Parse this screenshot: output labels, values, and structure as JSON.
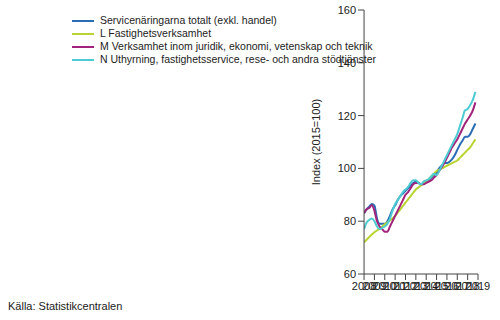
{
  "chart_data": {
    "type": "line",
    "y_label": "Index (2015=100)",
    "source": "Källa: Statistikcentralen",
    "x": [
      2008,
      2008.25,
      2008.5,
      2008.75,
      2009,
      2009.25,
      2009.5,
      2009.75,
      2010,
      2010.25,
      2010.5,
      2010.75,
      2011,
      2011.25,
      2011.5,
      2011.75,
      2012,
      2012.25,
      2012.5,
      2012.75,
      2013,
      2013.25,
      2013.5,
      2013.75,
      2014,
      2014.25,
      2014.5,
      2014.75,
      2015,
      2015.25,
      2015.5,
      2015.75,
      2016,
      2016.25,
      2016.5,
      2016.75,
      2017,
      2017.25,
      2017.5,
      2017.75,
      2018,
      2018.25,
      2018.5,
      2018.75
    ],
    "xlim": [
      2008,
      2019
    ],
    "xticks": [
      2008,
      2009,
      2010,
      2011,
      2012,
      2013,
      2014,
      2015,
      2016,
      2017,
      2018,
      2019
    ],
    "ylim": [
      60,
      160
    ],
    "yticks": [
      60,
      80,
      100,
      120,
      140,
      160
    ],
    "grid": false,
    "legend": "upper left",
    "series": [
      {
        "name": "Servicenäringarna totalt (exkl. handel)",
        "color": "#2a6db5",
        "values": [
          83,
          84.5,
          85.5,
          86.5,
          86,
          81,
          79,
          79,
          79,
          80,
          82,
          84.5,
          86,
          88,
          89.5,
          90.5,
          91.5,
          92.5,
          93.5,
          94.5,
          95,
          94.5,
          94,
          94.5,
          95,
          95.5,
          96.5,
          97.5,
          98.5,
          100,
          101,
          102,
          102,
          102.5,
          103.5,
          105,
          107,
          109,
          110.5,
          112,
          112,
          113,
          115,
          117
        ]
      },
      {
        "name": "L Fastighetsverksamhet",
        "color": "#b8d432",
        "values": [
          72,
          73,
          74,
          75,
          75.8,
          76.5,
          77.2,
          78,
          78.8,
          79.5,
          80.3,
          81,
          82,
          83.3,
          84.5,
          85.8,
          87,
          88.3,
          89.5,
          90.8,
          92,
          92.8,
          93.5,
          94.2,
          95,
          96,
          97,
          98,
          99,
          99.5,
          100,
          100.5,
          101,
          101.5,
          102,
          102.5,
          103,
          104,
          105,
          106,
          107,
          108,
          109.5,
          111
        ]
      },
      {
        "name": "M Verksamhet inom juridik, ekonomi, vetenskap och teknik",
        "color": "#a1237c",
        "values": [
          83,
          84.5,
          85,
          86,
          84,
          80,
          78,
          77,
          76,
          76,
          78,
          80,
          82,
          84,
          86,
          88,
          90,
          91,
          92.5,
          94,
          94.5,
          94.5,
          94,
          94,
          94.5,
          95,
          95.5,
          96.5,
          97.5,
          99,
          100.5,
          102,
          104,
          106,
          108,
          109.5,
          111,
          113,
          115,
          117,
          118.5,
          120,
          122,
          125
        ]
      },
      {
        "name": "N Uthyrning, fastighetsservice, rese- och andra stödtjänster",
        "color": "#4ecad3",
        "values": [
          77,
          79.5,
          80.5,
          81,
          80,
          78,
          77,
          77.5,
          78,
          79,
          81,
          84,
          86.5,
          88,
          89.5,
          91,
          92,
          93,
          94.5,
          95.5,
          95.5,
          94.5,
          94,
          95,
          95.5,
          96,
          97,
          98,
          97.5,
          99,
          101,
          103,
          105,
          107,
          109,
          111,
          113,
          116,
          119,
          122,
          122.5,
          124,
          126,
          129
        ]
      }
    ]
  }
}
